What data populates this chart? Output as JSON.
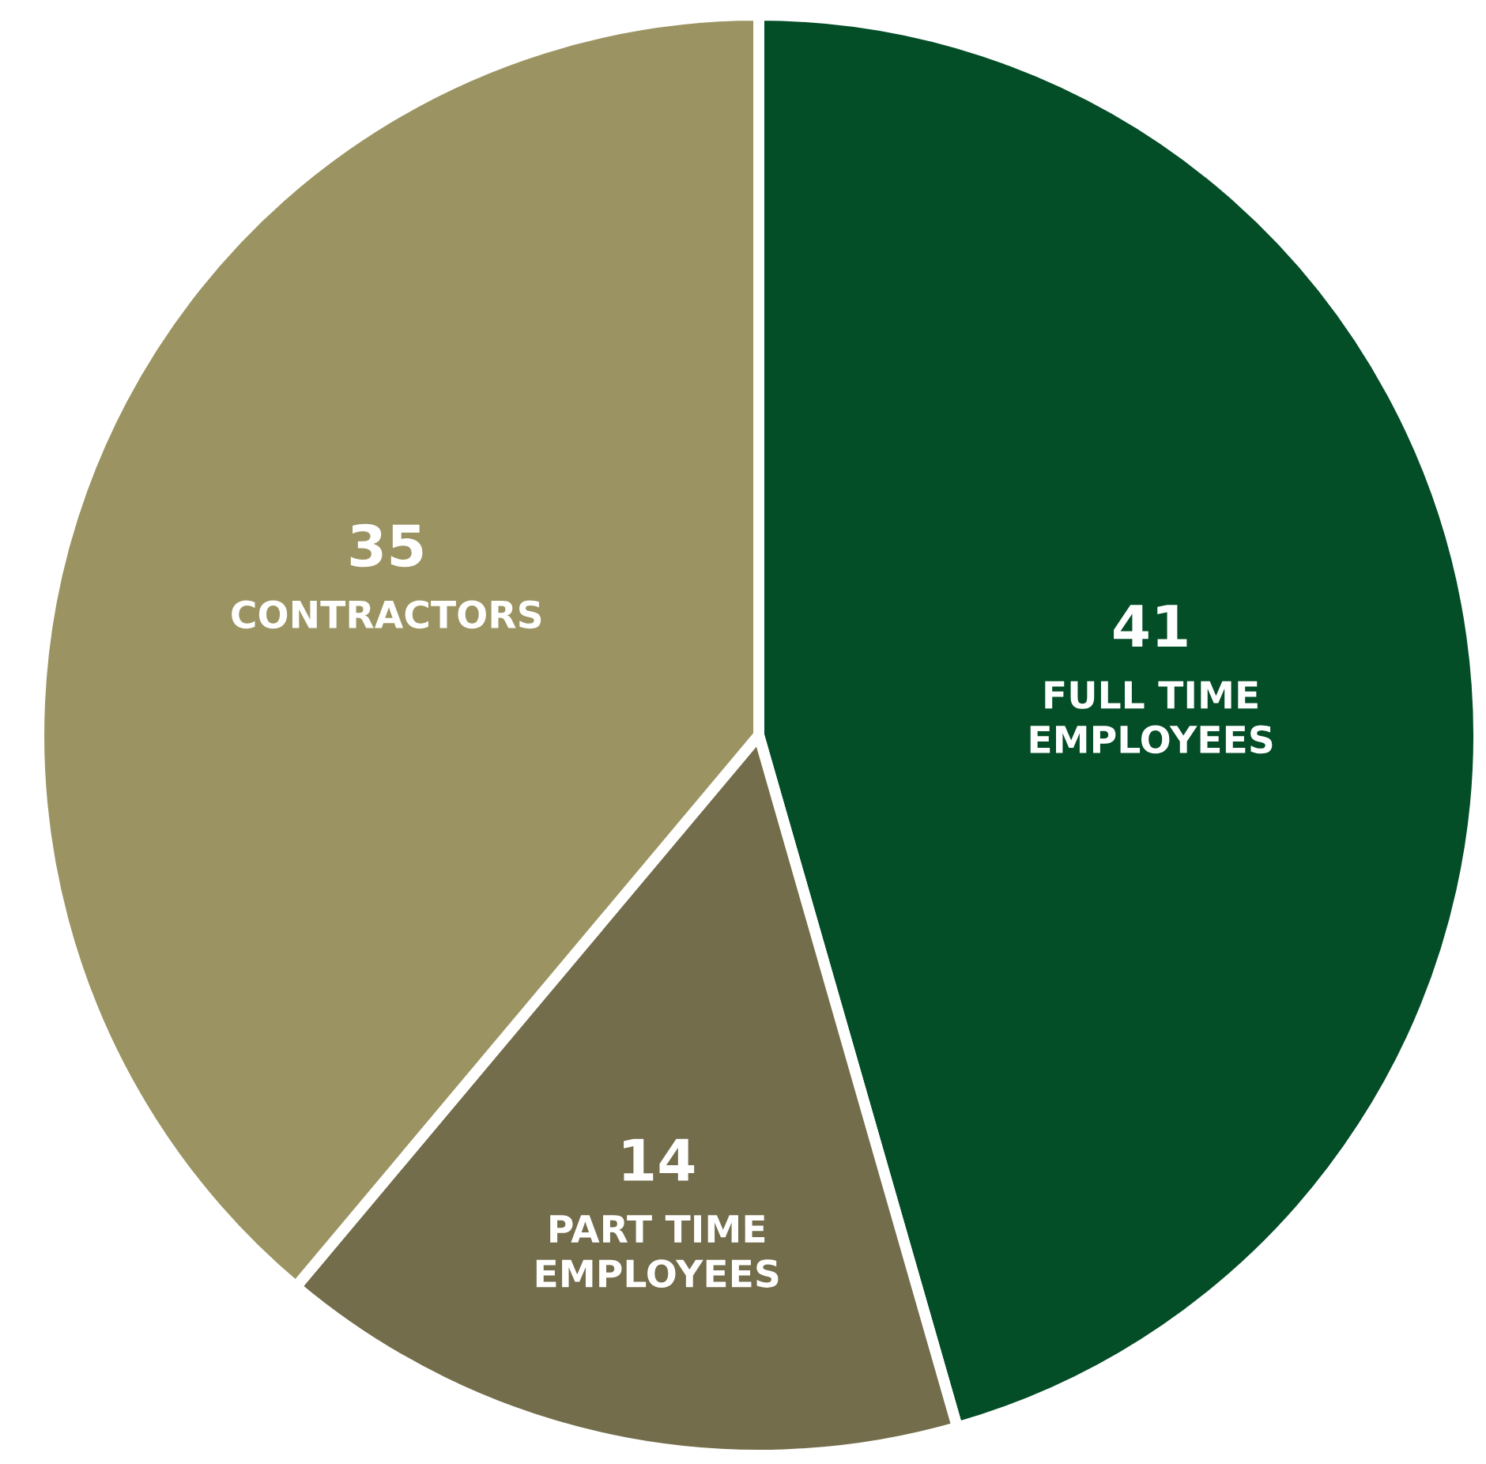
{
  "chart_data": {
    "type": "pie",
    "categories": [
      "FULL TIME\nEMPLOYEES",
      "PART TIME\nEMPLOYEES",
      "CONTRACTORS"
    ],
    "values": [
      41,
      14,
      35
    ],
    "colors": [
      "#034d27",
      "#736d4b",
      "#9b9462"
    ],
    "data_labels": true
  }
}
